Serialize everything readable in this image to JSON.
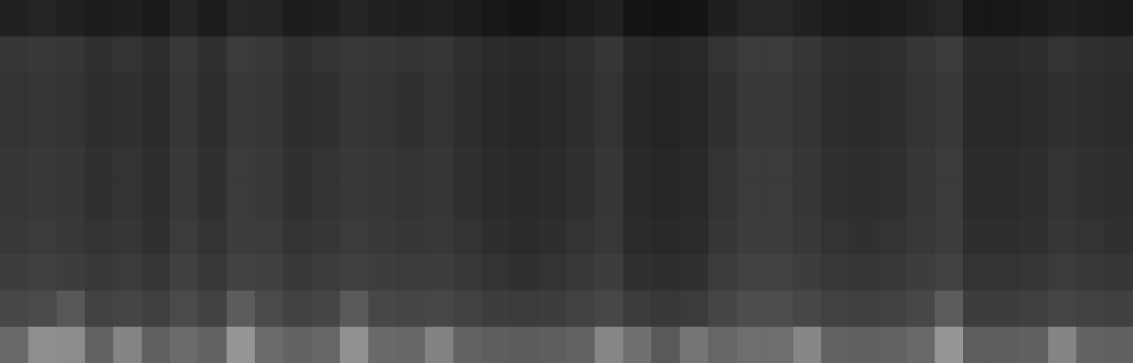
{
  "chart_data": {
    "type": "heatmap",
    "tick_labels": false,
    "grid": false,
    "zlim": [
      0,
      100
    ],
    "z": [
      [
        13,
        14,
        13,
        11,
        12,
        10,
        14,
        11,
        15,
        14,
        11,
        12,
        14,
        13,
        12,
        13,
        11,
        9,
        8,
        9,
        11,
        13,
        8,
        7,
        8,
        12,
        15,
        15,
        13,
        11,
        10,
        11,
        13,
        15,
        9,
        9,
        10,
        12,
        11,
        10
      ],
      [
        21,
        22,
        21,
        19,
        20,
        18,
        22,
        19,
        23,
        22,
        19,
        20,
        22,
        21,
        20,
        21,
        19,
        17,
        16,
        17,
        19,
        21,
        16,
        15,
        16,
        20,
        23,
        23,
        21,
        19,
        18,
        19,
        21,
        23,
        17,
        17,
        18,
        20,
        19,
        18
      ],
      [
        20,
        21,
        20,
        18,
        19,
        17,
        21,
        18,
        22,
        21,
        18,
        19,
        21,
        20,
        19,
        20,
        18,
        16,
        15,
        16,
        18,
        20,
        15,
        14,
        15,
        19,
        22,
        22,
        20,
        18,
        17,
        18,
        20,
        22,
        16,
        16,
        17,
        19,
        18,
        17
      ],
      [
        20,
        21,
        20,
        18,
        19,
        17,
        21,
        18,
        22,
        21,
        18,
        19,
        21,
        20,
        19,
        20,
        18,
        16,
        15,
        16,
        18,
        20,
        15,
        14,
        15,
        19,
        22,
        22,
        20,
        18,
        17,
        18,
        20,
        22,
        16,
        16,
        17,
        19,
        18,
        17
      ],
      [
        21,
        22,
        21,
        19,
        20,
        18,
        22,
        19,
        23,
        22,
        19,
        20,
        22,
        21,
        20,
        21,
        19,
        17,
        16,
        17,
        19,
        21,
        16,
        15,
        16,
        20,
        23,
        23,
        21,
        19,
        18,
        19,
        21,
        23,
        17,
        17,
        18,
        20,
        19,
        18
      ],
      [
        21,
        22,
        21,
        19,
        20,
        18,
        22,
        19,
        23,
        22,
        19,
        20,
        22,
        21,
        20,
        21,
        19,
        17,
        16,
        17,
        19,
        21,
        16,
        15,
        16,
        20,
        23,
        23,
        21,
        19,
        18,
        19,
        21,
        23,
        17,
        17,
        18,
        20,
        19,
        18
      ],
      [
        22,
        23,
        22,
        20,
        21,
        19,
        23,
        20,
        24,
        23,
        20,
        21,
        23,
        22,
        21,
        22,
        20,
        18,
        17,
        18,
        20,
        22,
        17,
        16,
        17,
        21,
        24,
        24,
        22,
        20,
        19,
        20,
        22,
        24,
        18,
        18,
        19,
        21,
        20,
        19
      ],
      [
        24,
        25,
        24,
        22,
        23,
        21,
        25,
        22,
        26,
        25,
        22,
        23,
        25,
        24,
        23,
        24,
        22,
        20,
        19,
        20,
        22,
        24,
        19,
        18,
        19,
        23,
        26,
        26,
        24,
        22,
        21,
        22,
        24,
        26,
        20,
        20,
        21,
        23,
        22,
        21
      ],
      [
        28,
        29,
        34,
        26,
        27,
        25,
        29,
        26,
        36,
        29,
        26,
        27,
        35,
        28,
        27,
        28,
        26,
        24,
        23,
        24,
        26,
        28,
        23,
        22,
        23,
        27,
        30,
        30,
        28,
        26,
        25,
        26,
        28,
        36,
        24,
        24,
        25,
        27,
        26,
        25
      ],
      [
        41,
        56,
        55,
        39,
        52,
        38,
        42,
        39,
        59,
        42,
        39,
        40,
        57,
        41,
        40,
        51,
        39,
        37,
        36,
        37,
        39,
        53,
        44,
        35,
        46,
        40,
        43,
        43,
        53,
        39,
        38,
        39,
        41,
        59,
        37,
        37,
        38,
        52,
        39,
        38
      ]
    ]
  }
}
